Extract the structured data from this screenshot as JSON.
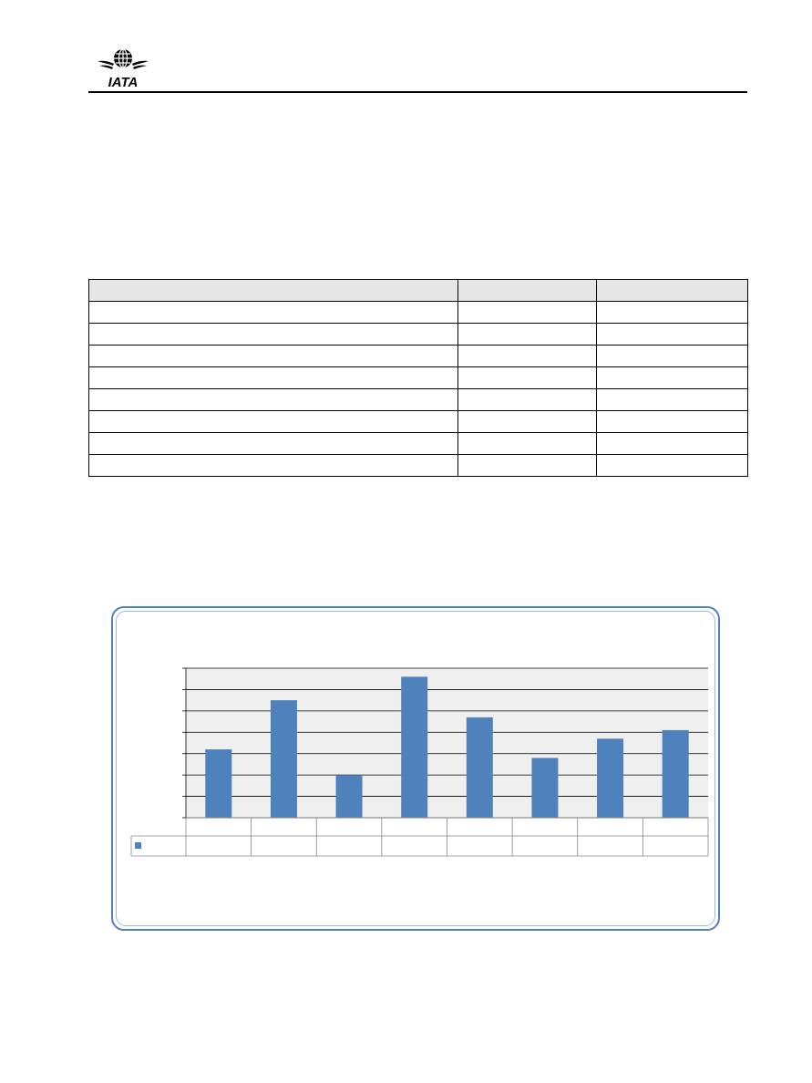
{
  "header": {
    "logo_text": "IATA",
    "logo_icon": "iata-globe-wings-logo"
  },
  "table": {
    "columns": 3,
    "header_row": [
      "",
      "",
      ""
    ],
    "rows": [
      [
        "",
        "",
        ""
      ],
      [
        "",
        "",
        ""
      ],
      [
        "",
        "",
        ""
      ],
      [
        "",
        "",
        ""
      ],
      [
        "",
        "",
        ""
      ],
      [
        "",
        "",
        ""
      ],
      [
        "",
        "",
        ""
      ],
      [
        "",
        "",
        ""
      ]
    ]
  },
  "chart_data": {
    "type": "bar",
    "title": "",
    "xlabel": "",
    "ylabel": "",
    "categories": [
      "",
      "",
      "",
      "",
      "",
      "",
      "",
      ""
    ],
    "series": [
      {
        "values": [
          3.2,
          5.5,
          2.0,
          6.6,
          4.7,
          2.8,
          3.7,
          4.1
        ]
      }
    ],
    "ylim": [
      0,
      7
    ],
    "yticks": [
      0,
      1,
      2,
      3,
      4,
      5,
      6,
      7
    ],
    "grid": true,
    "plot_background": "#efefef",
    "bar_color": "#4f81bd",
    "legend": "data-table-row",
    "data_table": true
  },
  "colors": {
    "accent": "#4f81bd",
    "frame_border": "#4f81bd"
  }
}
